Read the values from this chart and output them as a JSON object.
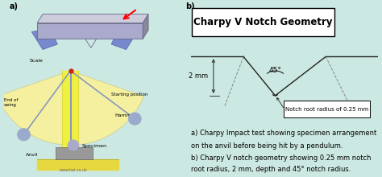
{
  "bg_color": "#cce8e2",
  "title": "Charpy V Notch Geometry",
  "title_fontsize": 8.5,
  "label_a": "a)",
  "label_b": "b)",
  "dim_label": "2 mm",
  "angle_label": "45°",
  "notch_radius_label": "Notch root radius of 0.25 mm",
  "caption_line1": "a) Charpy Impact test showing specimen arrangement",
  "caption_line2": "on the anvil before being hit by a pendulum.",
  "caption_line3": "b) Charpy V notch geometry showing 0.25 mm notch",
  "caption_line4": "root radius, 2 mm, depth and 45° notch radius.",
  "caption_fontsize": 6.0,
  "watermark": "www.twi.co.uk",
  "line_color": "#222222",
  "dashed_color": "#888888",
  "yellow_beam": "#f0f040",
  "yellow_base": "#e8d840",
  "blue_gray": "#8899bb",
  "gray_specimen": "#999999",
  "red_pivot": "#cc2222",
  "hammer_color": "#99aacc",
  "scale_arc_color": "#f5f0a0"
}
